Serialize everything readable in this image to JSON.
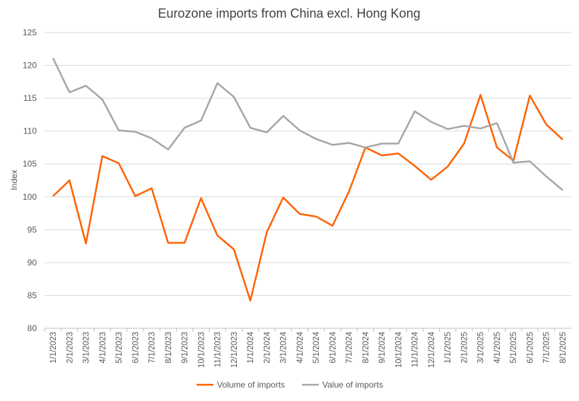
{
  "chart_data": {
    "type": "line",
    "title": "Eurozone imports from China excl. Hong Kong",
    "xlabel": "",
    "ylabel": "Index",
    "ylim": [
      80,
      125
    ],
    "yticks": [
      80,
      85,
      90,
      95,
      100,
      105,
      110,
      115,
      120,
      125
    ],
    "grid": true,
    "legend_position": "bottom",
    "x": [
      "1/1/2023",
      "2/1/2023",
      "3/1/2023",
      "4/1/2023",
      "5/1/2023",
      "6/1/2023",
      "7/1/2023",
      "8/1/2023",
      "9/1/2023",
      "10/1/2023",
      "11/1/2023",
      "12/1/2023",
      "1/1/2024",
      "2/1/2024",
      "3/1/2024",
      "4/1/2024",
      "5/1/2024",
      "6/1/2024",
      "7/1/2024",
      "8/1/2024",
      "9/1/2024",
      "10/1/2024",
      "11/1/2024",
      "12/1/2024",
      "1/1/2025",
      "2/1/2025",
      "3/1/2025",
      "4/1/2025",
      "5/1/2025",
      "6/1/2025",
      "7/1/2025",
      "8/1/2025"
    ],
    "series": [
      {
        "name": "Volume of imports",
        "color": "#FF6200",
        "values": [
          100.1,
          102.5,
          92.9,
          106.2,
          105.1,
          100.1,
          101.3,
          93.0,
          93.0,
          99.8,
          94.1,
          92.0,
          84.2,
          94.6,
          99.9,
          97.4,
          97.0,
          95.6,
          100.8,
          107.5,
          106.3,
          106.6,
          104.7,
          102.6,
          104.6,
          108.1,
          115.5,
          107.5,
          105.5,
          115.4,
          111.0,
          108.7
        ]
      },
      {
        "name": "Value of imports",
        "color": "#A6A6A6",
        "values": [
          121.1,
          115.9,
          116.9,
          114.8,
          110.1,
          109.9,
          108.9,
          107.2,
          110.5,
          111.6,
          117.3,
          115.2,
          110.5,
          109.8,
          112.3,
          110.1,
          108.8,
          107.9,
          108.2,
          107.5,
          108.1,
          108.1,
          113.0,
          111.4,
          110.3,
          110.8,
          110.4,
          111.2,
          105.2,
          105.4,
          103.1,
          101.0
        ]
      }
    ]
  }
}
